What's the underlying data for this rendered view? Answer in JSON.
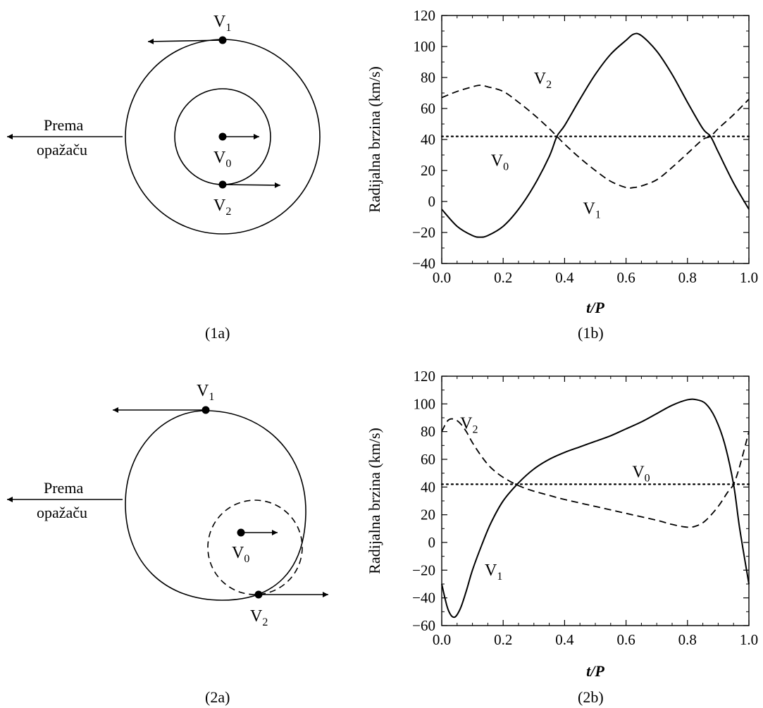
{
  "panels": [
    {
      "id": "1a",
      "caption": "(1a)",
      "observer_line1": "Prema",
      "observer_line2": "opažaču",
      "labels": {
        "v1_main": "V",
        "v1_sub": "1",
        "v0_main": "V",
        "v0_sub": "0",
        "v2_main": "V",
        "v2_sub": "2"
      }
    },
    {
      "id": "2a",
      "caption": "(2a)",
      "observer_line1": "Prema",
      "observer_line2": "opažaču",
      "labels": {
        "v1_main": "V",
        "v1_sub": "1",
        "v0_main": "V",
        "v0_sub": "0",
        "v2_main": "V",
        "v2_sub": "2"
      }
    }
  ],
  "chart_data": [
    {
      "id": "1b",
      "type": "line",
      "caption": "(1b)",
      "xlabel": "t/P",
      "ylabel": "Radijalna brzina (km/s)",
      "xlim": [
        0.0,
        1.0
      ],
      "ylim": [
        -40,
        120
      ],
      "xticks": [
        0.0,
        0.2,
        0.4,
        0.6,
        0.8,
        1.0
      ],
      "xtick_labels": [
        "0.0",
        "0.2",
        "0.4",
        "0.6",
        "0.8",
        "1.0"
      ],
      "yticks": [
        -40,
        -20,
        0,
        20,
        40,
        60,
        80,
        100,
        120
      ],
      "ytick_labels": [
        "−40",
        "−20",
        "0",
        "20",
        "40",
        "60",
        "80",
        "100",
        "120"
      ],
      "series": [
        {
          "name": "V1",
          "label_main": "V",
          "label_sub": "1",
          "label_at": [
            0.46,
            -8
          ],
          "style": "solid",
          "x": [
            0.0,
            0.05,
            0.1,
            0.125,
            0.15,
            0.2,
            0.25,
            0.3,
            0.35,
            0.375,
            0.4,
            0.45,
            0.5,
            0.55,
            0.6,
            0.625,
            0.65,
            0.7,
            0.75,
            0.8,
            0.85,
            0.875,
            0.9,
            0.95,
            1.0
          ],
          "y": [
            -5,
            -16,
            -22,
            -23,
            -22,
            -16,
            -5,
            10,
            29,
            42,
            49,
            66,
            82,
            95,
            104,
            108,
            107,
            97,
            82,
            64,
            47,
            42,
            32,
            12,
            -5
          ]
        },
        {
          "name": "V2",
          "label_main": "V",
          "label_sub": "2",
          "label_at": [
            0.3,
            76
          ],
          "style": "dashed",
          "x": [
            0.0,
            0.05,
            0.1,
            0.125,
            0.15,
            0.2,
            0.25,
            0.3,
            0.35,
            0.375,
            0.4,
            0.45,
            0.5,
            0.55,
            0.6,
            0.625,
            0.65,
            0.7,
            0.75,
            0.8,
            0.85,
            0.875,
            0.9,
            0.95,
            1.0
          ],
          "y": [
            67,
            71,
            74,
            75,
            74,
            71,
            64,
            56,
            47,
            42,
            37,
            28,
            20,
            13,
            9,
            9,
            10,
            14,
            22,
            31,
            40,
            42,
            47,
            56,
            66
          ]
        },
        {
          "name": "V0",
          "label_main": "V",
          "label_sub": "0",
          "label_at": [
            0.16,
            23
          ],
          "style": "dotted",
          "x": [
            0.0,
            1.0
          ],
          "y": [
            42,
            42
          ]
        }
      ]
    },
    {
      "id": "2b",
      "type": "line",
      "caption": "(2b)",
      "xlabel": "t/P",
      "ylabel": "Radijalna brzina (km/s)",
      "xlim": [
        0.0,
        1.0
      ],
      "ylim": [
        -60,
        120
      ],
      "xticks": [
        0.0,
        0.2,
        0.4,
        0.6,
        0.8,
        1.0
      ],
      "xtick_labels": [
        "0.0",
        "0.2",
        "0.4",
        "0.6",
        "0.8",
        "1.0"
      ],
      "yticks": [
        -60,
        -40,
        -20,
        0,
        20,
        40,
        60,
        80,
        100,
        120
      ],
      "ytick_labels": [
        "−60",
        "−40",
        "−20",
        "0",
        "20",
        "40",
        "60",
        "80",
        "100",
        "120"
      ],
      "series": [
        {
          "name": "V1",
          "label_main": "V",
          "label_sub": "1",
          "label_at": [
            0.14,
            -24
          ],
          "style": "solid",
          "x": [
            0.0,
            0.02,
            0.04,
            0.06,
            0.08,
            0.1,
            0.13,
            0.16,
            0.2,
            0.25,
            0.3,
            0.35,
            0.4,
            0.45,
            0.5,
            0.55,
            0.6,
            0.65,
            0.7,
            0.75,
            0.8,
            0.83,
            0.86,
            0.89,
            0.92,
            0.95,
            0.97,
            1.0
          ],
          "y": [
            -30,
            -48,
            -54,
            -48,
            -35,
            -20,
            -2,
            14,
            30,
            43,
            53,
            60,
            65,
            69,
            73,
            77,
            82,
            87,
            93,
            99,
            103,
            103,
            100,
            90,
            72,
            42,
            10,
            -30
          ]
        },
        {
          "name": "V2",
          "label_main": "V",
          "label_sub": "2",
          "label_at": [
            0.06,
            82
          ],
          "style": "dashed",
          "x": [
            0.0,
            0.02,
            0.04,
            0.06,
            0.08,
            0.1,
            0.13,
            0.16,
            0.2,
            0.25,
            0.3,
            0.35,
            0.4,
            0.5,
            0.6,
            0.7,
            0.75,
            0.8,
            0.83,
            0.86,
            0.9,
            0.93,
            0.95,
            0.97,
            1.0
          ],
          "y": [
            80,
            88,
            89,
            86,
            80,
            72,
            62,
            54,
            47,
            41,
            37,
            34,
            31,
            26,
            21,
            16,
            13,
            11,
            12,
            16,
            26,
            36,
            42,
            55,
            80
          ]
        },
        {
          "name": "V0",
          "label_main": "V",
          "label_sub": "0",
          "label_at": [
            0.62,
            47
          ],
          "style": "dotted",
          "x": [
            0.0,
            1.0
          ],
          "y": [
            42,
            42
          ]
        }
      ]
    }
  ]
}
